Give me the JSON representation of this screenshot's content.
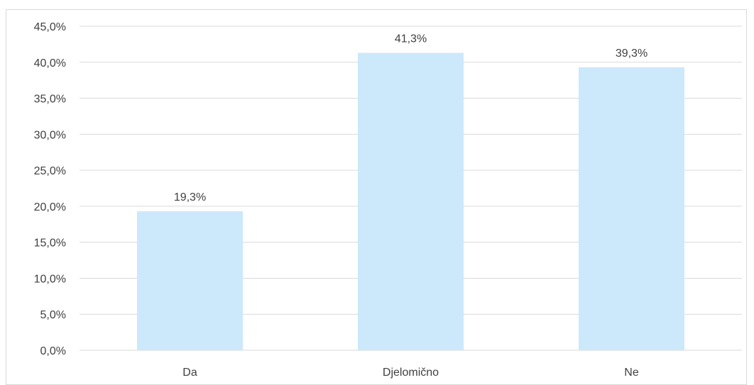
{
  "chart_data": {
    "type": "bar",
    "categories": [
      "Da",
      "Djelomično",
      "Ne"
    ],
    "values": [
      19.3,
      41.3,
      39.3
    ],
    "data_labels": [
      "19,3%",
      "41,3%",
      "39,3%"
    ],
    "ylim": [
      0,
      45
    ],
    "y_ticks": [
      0,
      5,
      10,
      15,
      20,
      25,
      30,
      35,
      40,
      45
    ],
    "y_tick_labels": [
      "0,0%",
      "5,0%",
      "10,0%",
      "15,0%",
      "20,0%",
      "25,0%",
      "30,0%",
      "35,0%",
      "40,0%",
      "45,0%"
    ],
    "title": "",
    "xlabel": "",
    "ylabel": "",
    "grid": true,
    "legend": "none",
    "colors": {
      "bar": "#cce8fb",
      "grid": "#d9d9d9",
      "text": "#404040",
      "border": "#d9d9d9"
    }
  }
}
